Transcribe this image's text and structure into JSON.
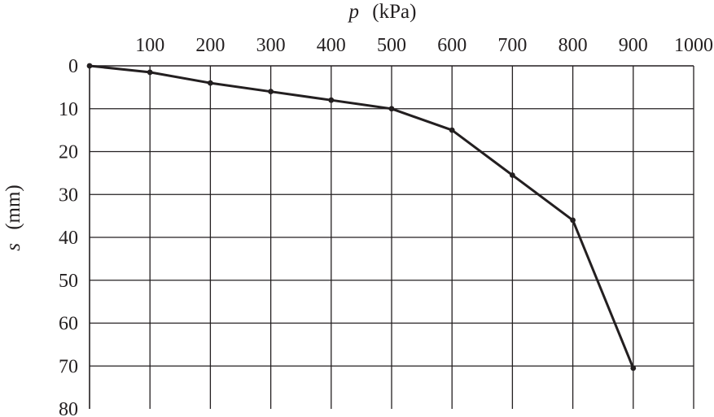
{
  "chart_data": {
    "type": "line",
    "x_axis": {
      "variable": "p",
      "unit": "(kPa)",
      "position": "top",
      "range": [
        0,
        1000
      ],
      "ticks": [
        100,
        200,
        300,
        400,
        500,
        600,
        700,
        800,
        900,
        1000
      ],
      "tick_labels": [
        "100",
        "200",
        "300",
        "400",
        "500",
        "600",
        "700",
        "800",
        "900",
        "1000"
      ]
    },
    "y_axis": {
      "variable": "s",
      "unit": "(mm)",
      "inverted": true,
      "range": [
        0,
        80
      ],
      "ticks": [
        0,
        10,
        20,
        30,
        40,
        50,
        60,
        70,
        80
      ],
      "tick_labels": [
        "0",
        "10",
        "20",
        "30",
        "40",
        "50",
        "60",
        "70",
        "80"
      ]
    },
    "grid": true,
    "series": [
      {
        "x": [
          0,
          100,
          200,
          300,
          400,
          500,
          600,
          700,
          800,
          900
        ],
        "y": [
          0,
          1.5,
          4,
          6,
          8,
          10,
          15,
          25.5,
          36,
          70.5
        ]
      }
    ]
  }
}
